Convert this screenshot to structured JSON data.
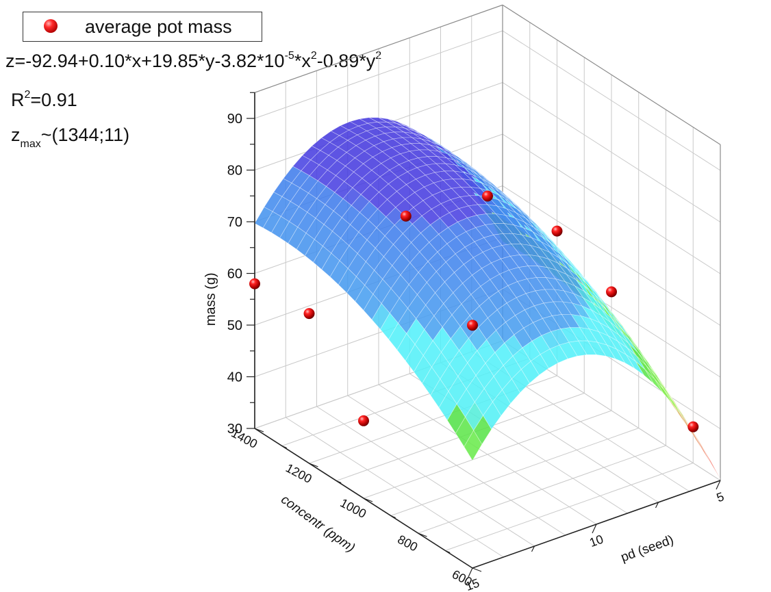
{
  "legend": {
    "label": "average pot mass"
  },
  "equation": {
    "prefix": "z=-92.94+0.10*x+19.85*y-3.82*10",
    "exp1": "-5",
    "mid": "*x",
    "exp2": "2",
    "tail": "-0.89*y",
    "exp3": "2"
  },
  "r2": {
    "base": "R",
    "exp": "2",
    "value": "=0.91"
  },
  "zmax": {
    "base": "z",
    "sub": "max",
    "value": "~(1344;11)"
  },
  "chart_data": {
    "type": "scatter3d",
    "series": [
      {
        "name": "average pot mass",
        "points": [
          {
            "x": 1400,
            "y": 15,
            "z": 58
          },
          {
            "x": 1200,
            "y": 15,
            "z": 59
          },
          {
            "x": 1000,
            "y": 15,
            "z": 45
          },
          {
            "x": 600,
            "y": 15,
            "z": 77
          },
          {
            "x": 1000,
            "y": 10,
            "z": 80
          },
          {
            "x": 1300,
            "y": 10,
            "z": 66
          },
          {
            "x": 1200,
            "y": 5,
            "z": 58
          },
          {
            "x": 1000,
            "y": 5,
            "z": 53
          },
          {
            "x": 700,
            "y": 5,
            "z": 37
          }
        ]
      }
    ],
    "surface": {
      "a0": -92.94,
      "ax": 0.1,
      "ay": 19.85,
      "axx": -3.82e-05,
      "ayy": -0.89
    },
    "axes": {
      "x": {
        "label": "concentr (ppm)",
        "range": [
          600,
          1400
        ],
        "ticks": [
          600,
          800,
          1000,
          1200,
          1400
        ]
      },
      "y": {
        "label": "pd (seed)",
        "range": [
          5,
          15
        ],
        "ticks": [
          5,
          10,
          15
        ]
      },
      "z": {
        "label": "mass (g)",
        "range": [
          30,
          95
        ],
        "ticks": [
          30,
          40,
          50,
          60,
          70,
          80,
          90
        ]
      }
    },
    "grid": true,
    "legend_position": "top-left"
  }
}
